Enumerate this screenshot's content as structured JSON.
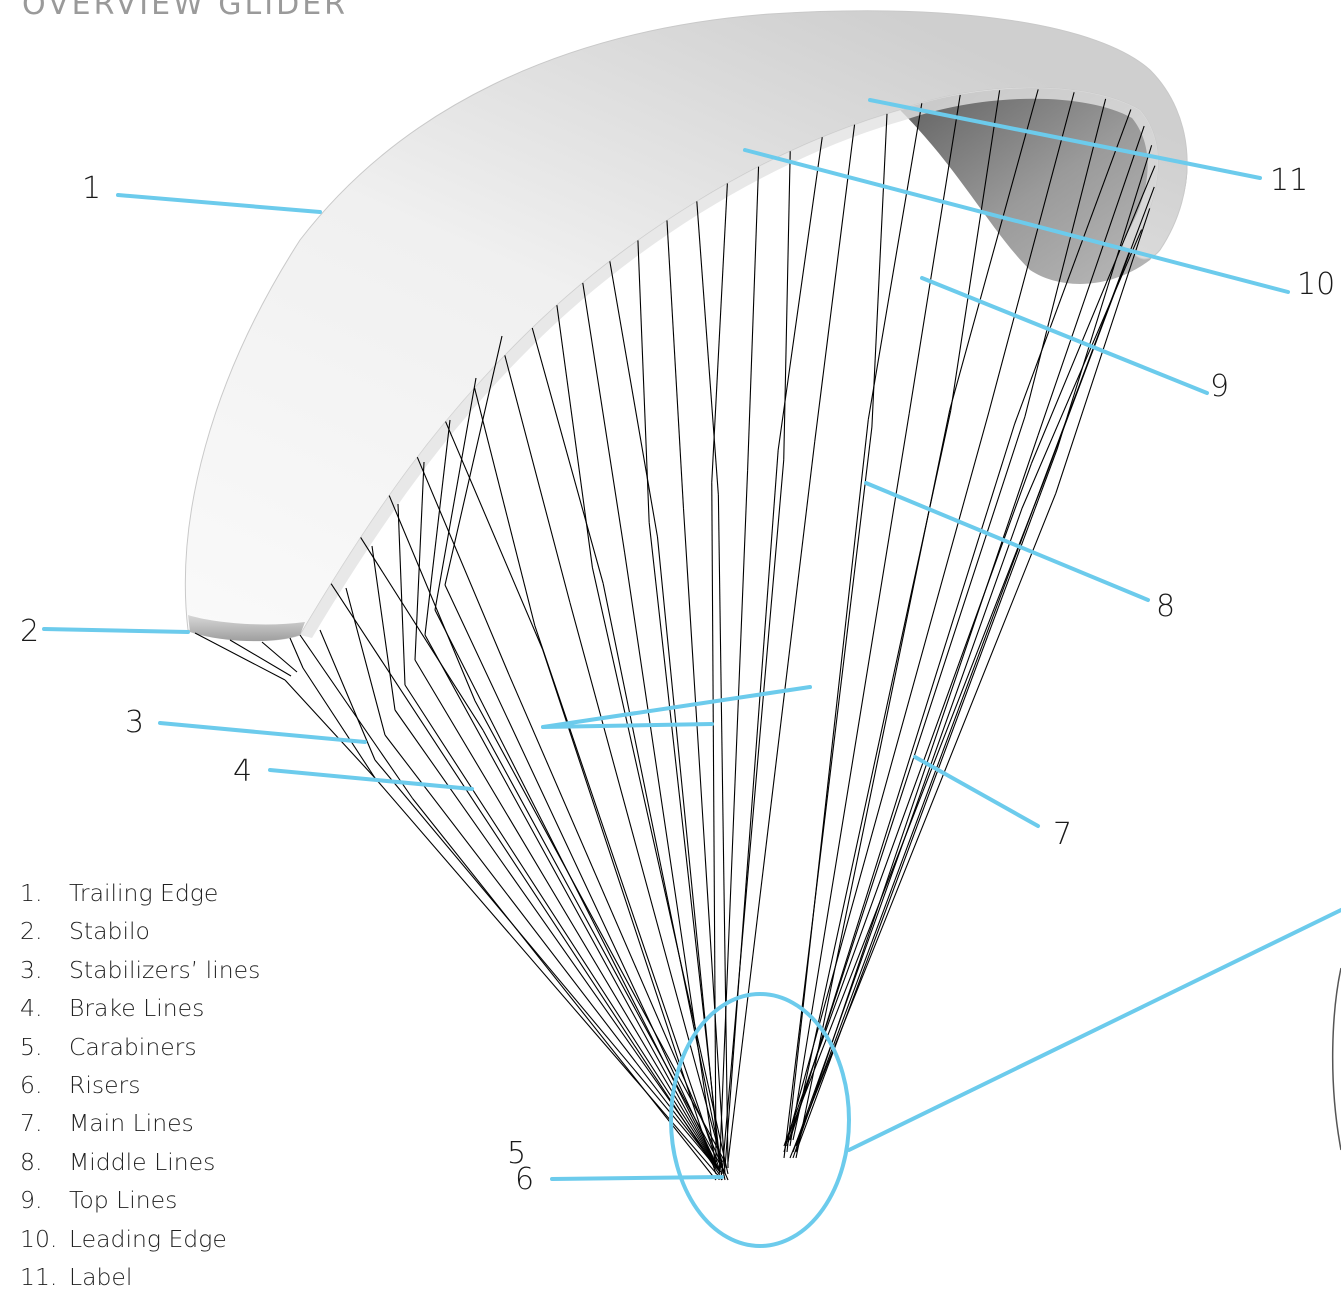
{
  "header": {
    "title": "OVERVIEW GLIDER"
  },
  "callouts": [
    "1",
    "2",
    "3",
    "4",
    "5",
    "6",
    "7",
    "8",
    "9",
    "10",
    "11"
  ],
  "legend": {
    "items": [
      {
        "number": "1.",
        "label": "Trailing Edge"
      },
      {
        "number": "2.",
        "label": "Stabilo"
      },
      {
        "number": "3.",
        "label": "Stabilizers’ lines"
      },
      {
        "number": "4.",
        "label": "Brake Lines"
      },
      {
        "number": "5.",
        "label": "Carabiners"
      },
      {
        "number": "6.",
        "label": "Risers"
      },
      {
        "number": "7.",
        "label": "Main Lines"
      },
      {
        "number": "8.",
        "label": "Middle Lines"
      },
      {
        "number": "9.",
        "label": "Top Lines"
      },
      {
        "number": "10.",
        "label": "Leading Edge"
      },
      {
        "number": "11.",
        "label": "Label"
      }
    ]
  },
  "colors": {
    "callout_line": "#6ccbec",
    "suspension_line": "#000000",
    "canopy_light": "#f4f4f4",
    "canopy_shadow": "#8c8c8c",
    "text": "#222222"
  }
}
